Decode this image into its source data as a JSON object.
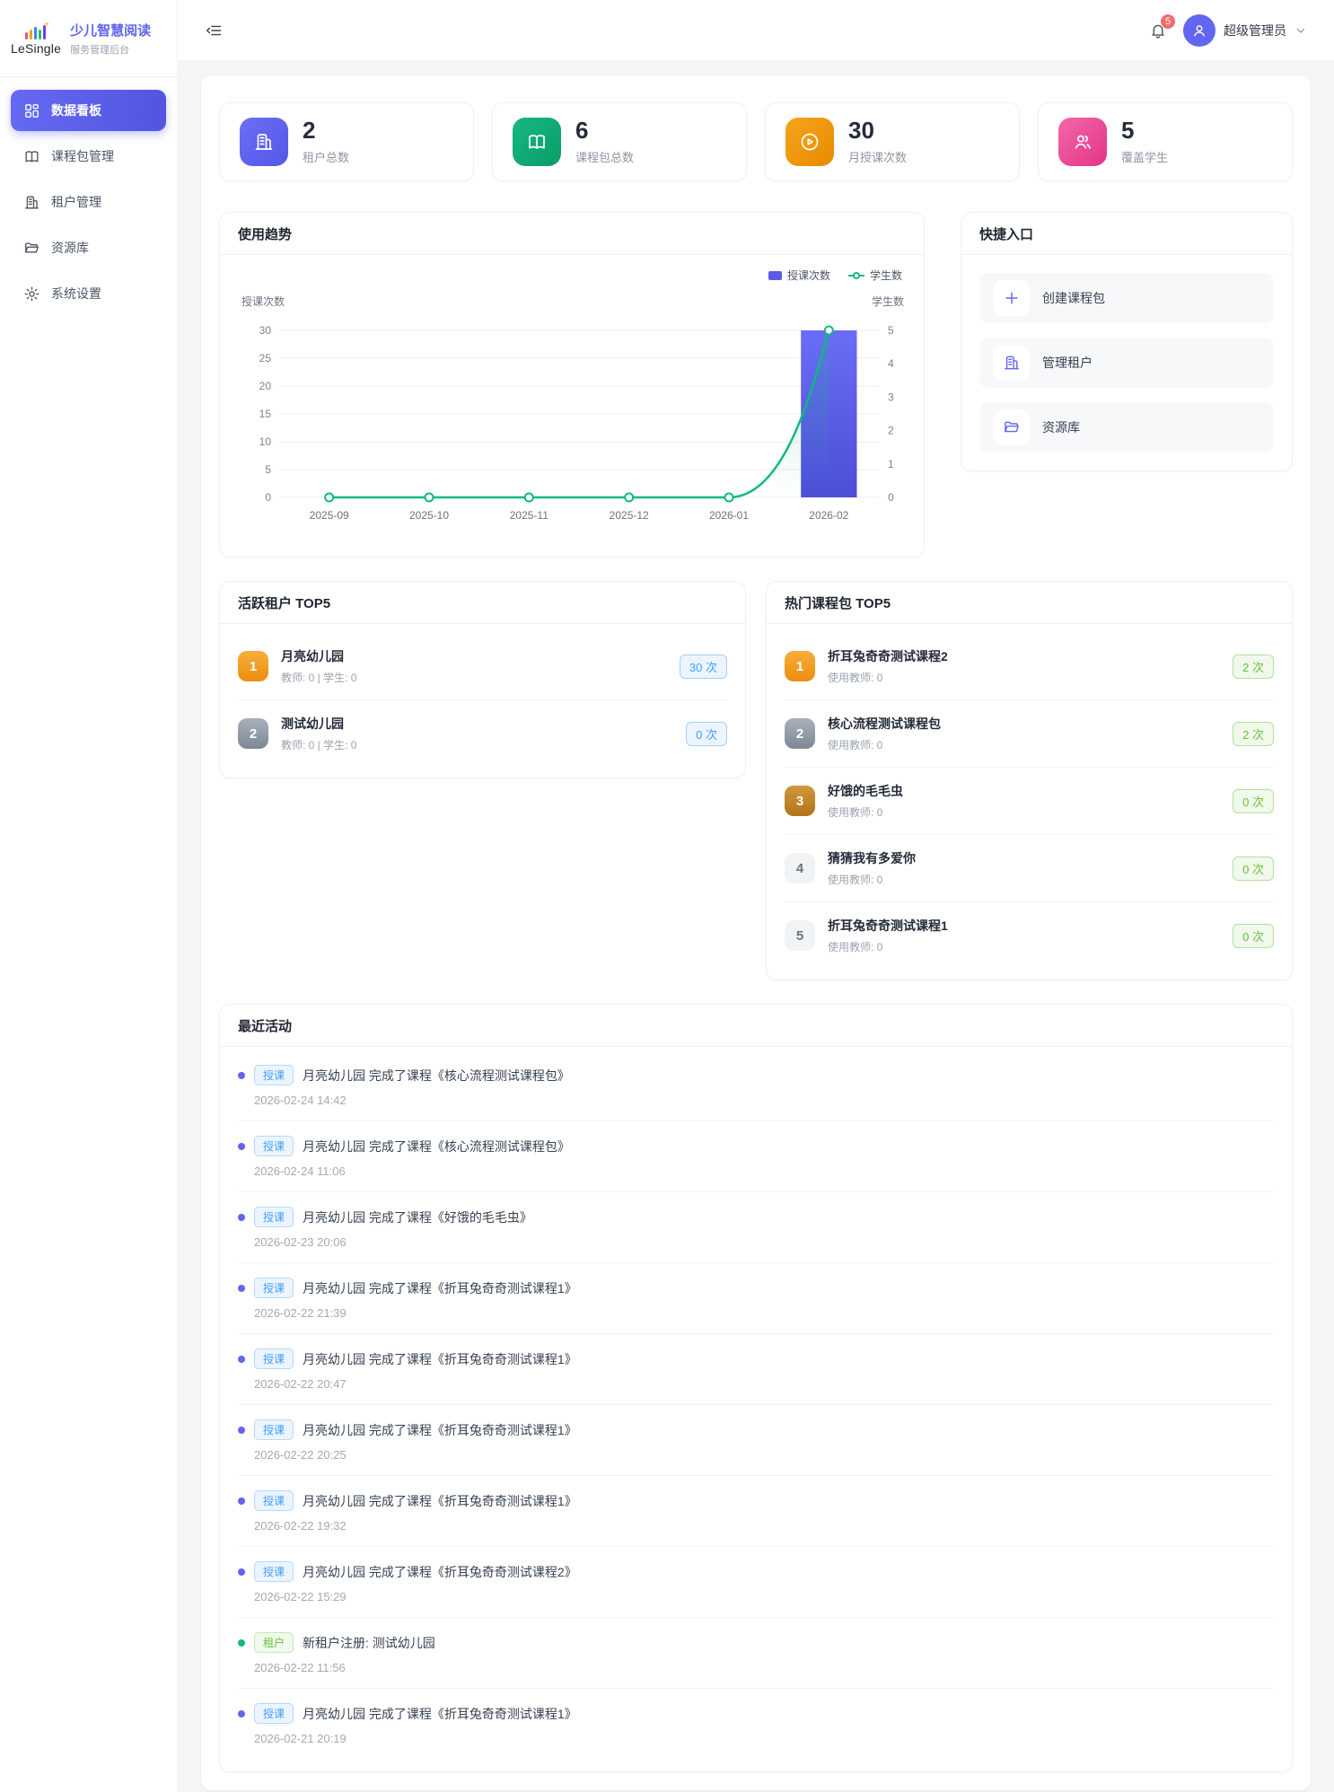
{
  "app": {
    "logo_text": "LeSingle",
    "title": "少儿智慧阅读",
    "subtitle": "服务管理后台"
  },
  "sidebar": {
    "items": [
      {
        "label": "数据看板",
        "icon": "dashboard-icon",
        "active": true
      },
      {
        "label": "课程包管理",
        "icon": "book-icon",
        "active": false
      },
      {
        "label": "租户管理",
        "icon": "building-icon",
        "active": false
      },
      {
        "label": "资源库",
        "icon": "folder-icon",
        "active": false
      },
      {
        "label": "系统设置",
        "icon": "gear-icon",
        "active": false
      }
    ]
  },
  "header": {
    "notification_count": "5",
    "user_name": "超级管理员"
  },
  "stats": [
    {
      "value": "2",
      "label": "租户总数",
      "icon": "building-icon",
      "c1": "#6d6ff5",
      "c2": "#5456e8"
    },
    {
      "value": "6",
      "label": "课程包总数",
      "icon": "book-icon",
      "c1": "#16b883",
      "c2": "#0b9c66"
    },
    {
      "value": "30",
      "label": "月授课次数",
      "icon": "play-icon",
      "c1": "#f6a41c",
      "c2": "#e88a00"
    },
    {
      "value": "5",
      "label": "覆盖学生",
      "icon": "users-icon",
      "c1": "#f268a6",
      "c2": "#e43486"
    }
  ],
  "trend_card": {
    "title": "使用趋势"
  },
  "chart_data": {
    "type": "bar+line",
    "categories": [
      "2025-09",
      "2025-10",
      "2025-11",
      "2025-12",
      "2026-01",
      "2026-02"
    ],
    "series": [
      {
        "name": "授课次数",
        "type": "bar",
        "axis": "left",
        "color": "#5b5be5",
        "values": [
          0,
          0,
          0,
          0,
          0,
          30
        ]
      },
      {
        "name": "学生数",
        "type": "line",
        "axis": "right",
        "color": "#10b981",
        "values": [
          0,
          0,
          0,
          0,
          0,
          5
        ]
      }
    ],
    "left_axis": {
      "label": "授课次数",
      "ticks": [
        0,
        5,
        10,
        15,
        20,
        25,
        30
      ]
    },
    "right_axis": {
      "label": "学生数",
      "ticks": [
        0,
        1,
        2,
        3,
        4,
        5
      ]
    },
    "grid": true,
    "legend_position": "top-right"
  },
  "quick_entry": {
    "title": "快捷入口",
    "items": [
      {
        "label": "创建课程包",
        "icon": "plus-icon"
      },
      {
        "label": "管理租户",
        "icon": "building-icon"
      },
      {
        "label": "资源库",
        "icon": "folder-icon"
      }
    ]
  },
  "active_tenants": {
    "title": "活跃租户 TOP5",
    "items": [
      {
        "rank": "1",
        "name": "月亮幼儿园",
        "meta": "教师: 0 | 学生: 0",
        "count": "30 次"
      },
      {
        "rank": "2",
        "name": "测试幼儿园",
        "meta": "教师: 0 | 学生: 0",
        "count": "0 次"
      }
    ]
  },
  "hot_packages": {
    "title": "热门课程包 TOP5",
    "items": [
      {
        "rank": "1",
        "name": "折耳兔奇奇测试课程2",
        "meta": "使用教师: 0",
        "count": "2 次"
      },
      {
        "rank": "2",
        "name": "核心流程测试课程包",
        "meta": "使用教师: 0",
        "count": "2 次"
      },
      {
        "rank": "3",
        "name": "好饿的毛毛虫",
        "meta": "使用教师: 0",
        "count": "0 次"
      },
      {
        "rank": "4",
        "name": "猜猜我有多爱你",
        "meta": "使用教师: 0",
        "count": "0 次"
      },
      {
        "rank": "5",
        "name": "折耳兔奇奇测试课程1",
        "meta": "使用教师: 0",
        "count": "0 次"
      }
    ]
  },
  "recent_activity": {
    "title": "最近活动",
    "items": [
      {
        "tag": "授课",
        "kind": "teach",
        "text": "月亮幼儿园 完成了课程《核心流程测试课程包》",
        "time": "2026-02-24 14:42"
      },
      {
        "tag": "授课",
        "kind": "teach",
        "text": "月亮幼儿园 完成了课程《核心流程测试课程包》",
        "time": "2026-02-24 11:06"
      },
      {
        "tag": "授课",
        "kind": "teach",
        "text": "月亮幼儿园 完成了课程《好饿的毛毛虫》",
        "time": "2026-02-23 20:06"
      },
      {
        "tag": "授课",
        "kind": "teach",
        "text": "月亮幼儿园 完成了课程《折耳兔奇奇测试课程1》",
        "time": "2026-02-22 21:39"
      },
      {
        "tag": "授课",
        "kind": "teach",
        "text": "月亮幼儿园 完成了课程《折耳兔奇奇测试课程1》",
        "time": "2026-02-22 20:47"
      },
      {
        "tag": "授课",
        "kind": "teach",
        "text": "月亮幼儿园 完成了课程《折耳兔奇奇测试课程1》",
        "time": "2026-02-22 20:25"
      },
      {
        "tag": "授课",
        "kind": "teach",
        "text": "月亮幼儿园 完成了课程《折耳兔奇奇测试课程1》",
        "time": "2026-02-22 19:32"
      },
      {
        "tag": "授课",
        "kind": "teach",
        "text": "月亮幼儿园 完成了课程《折耳兔奇奇测试课程2》",
        "time": "2026-02-22 15:29"
      },
      {
        "tag": "租户",
        "kind": "tenant",
        "text": "新租户注册: 测试幼儿园",
        "time": "2026-02-22 11:56"
      },
      {
        "tag": "授课",
        "kind": "teach",
        "text": "月亮幼儿园 完成了课程《折耳兔奇奇测试课程1》",
        "time": "2026-02-21 20:19"
      }
    ]
  }
}
